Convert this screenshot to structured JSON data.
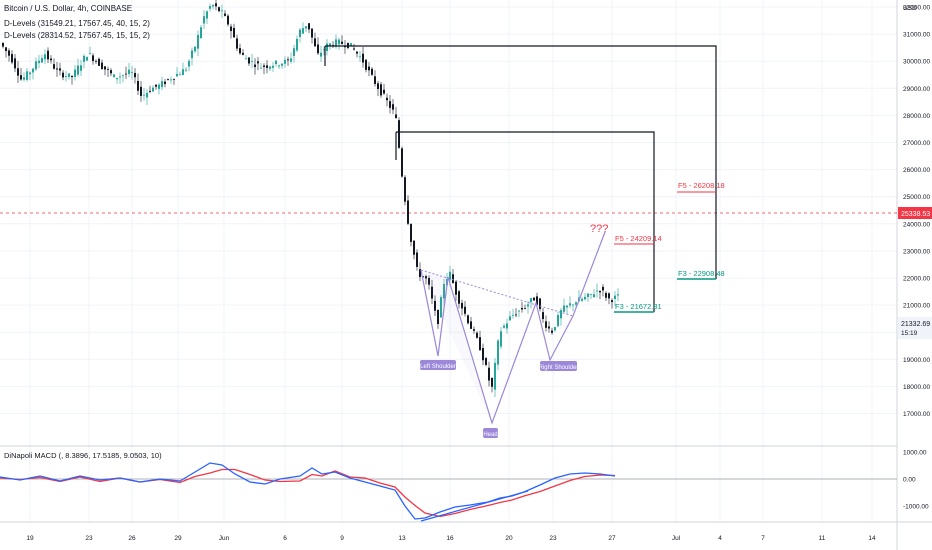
{
  "header": {
    "title": "Bitcoin / U.S. Dollar, 4h, COINBASE",
    "indicator_1": "D-Levels (31549.21, 17567.45, 40, 15, 2)",
    "indicator_2": "D-Levels (28314.52, 17567.45, 15, 15, 2)"
  },
  "currency": "USD",
  "macd_label": "DiNapoli MACD (, 8.3896, 17.5185, 9.0503, 10)",
  "price_axis": {
    "ticks": [
      "32000.00",
      "31000.00",
      "30000.00",
      "29000.00",
      "28000.00",
      "27000.00",
      "26000.00",
      "25000.00",
      "24000.00",
      "23000.00",
      "22000.00",
      "21000.00",
      "20000.00",
      "19000.00",
      "18000.00",
      "17000.00"
    ],
    "current_price": "21332.69",
    "countdown": "15:19",
    "crosshair_price": "25338.53"
  },
  "macd_axis": {
    "ticks": [
      "1000.00",
      "0.00",
      "-1000.00"
    ]
  },
  "time_axis": {
    "labels": [
      "19",
      "23",
      "26",
      "29",
      "Jun",
      "6",
      "9",
      "13",
      "16",
      "20",
      "23",
      "27",
      "Jul",
      "4",
      "7",
      "11",
      "14"
    ]
  },
  "annotations": {
    "left_shoulder": "Left Shoulder",
    "head": "Head",
    "right_shoulder": "Right Shoulder",
    "question": "???"
  },
  "levels": [
    {
      "label": "F5 - 26208.18",
      "color": "#f23645"
    },
    {
      "label": "F3 - 22908.48",
      "color": "#089981"
    },
    {
      "label": "F5 - 24209.14",
      "color": "#f23645"
    },
    {
      "label": "F3 - 21672.81",
      "color": "#089981"
    }
  ],
  "colors": {
    "up": "#26a69a",
    "down": "#131722",
    "macd": "#2962ff",
    "signal": "#f23645",
    "pattern": "#9c87d9",
    "crosshair": "#f23645"
  }
}
